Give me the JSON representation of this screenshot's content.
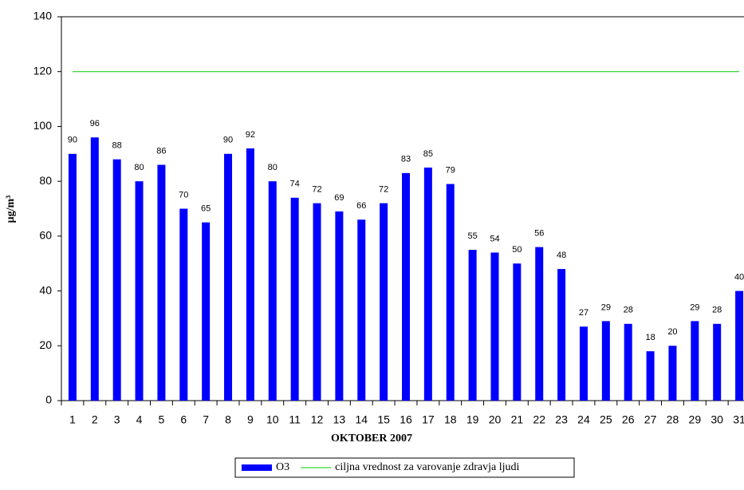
{
  "chart_data": {
    "type": "bar",
    "y_label": "μg/m³",
    "x_label": "OKTOBER 2007",
    "categories": [
      "1",
      "2",
      "3",
      "4",
      "5",
      "6",
      "7",
      "8",
      "9",
      "10",
      "11",
      "12",
      "13",
      "14",
      "15",
      "16",
      "17",
      "18",
      "19",
      "20",
      "21",
      "22",
      "23",
      "24",
      "25",
      "26",
      "27",
      "28",
      "29",
      "30",
      "31"
    ],
    "series": [
      {
        "name": "O3",
        "type": "bar",
        "color": "#0000ff",
        "values": [
          90,
          96,
          88,
          80,
          86,
          70,
          65,
          90,
          92,
          80,
          74,
          72,
          69,
          66,
          72,
          83,
          85,
          79,
          55,
          54,
          50,
          56,
          48,
          27,
          29,
          28,
          18,
          20,
          29,
          28,
          40
        ]
      },
      {
        "name": "ciljna vrednost za varovanje zdravja ljudi",
        "type": "line",
        "color": "#00cc00",
        "values": [
          120,
          120,
          120,
          120,
          120,
          120,
          120,
          120,
          120,
          120,
          120,
          120,
          120,
          120,
          120,
          120,
          120,
          120,
          120,
          120,
          120,
          120,
          120,
          120,
          120,
          120,
          120,
          120,
          120,
          120,
          120
        ]
      }
    ],
    "ylim": [
      0,
      140
    ],
    "yticks": [
      0,
      20,
      40,
      60,
      80,
      100,
      120,
      140
    ],
    "grid": false,
    "legend": "bottom"
  }
}
